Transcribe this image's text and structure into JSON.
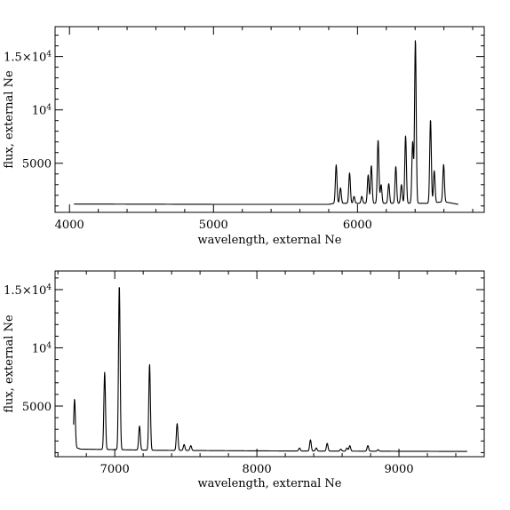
{
  "chart_data": [
    {
      "type": "line",
      "xlabel": "wavelength, external Ne",
      "ylabel": "flux, external Ne",
      "xlim": [
        3900,
        6880
      ],
      "ylim": [
        400,
        17800
      ],
      "x_ticks": [
        4000,
        5000,
        6000
      ],
      "x_tick_labels": [
        "4000",
        "5000",
        "6000"
      ],
      "y_ticks": [
        5000,
        10000,
        15000
      ],
      "y_tick_labels": [
        "5000",
        "10^4",
        "1.5×10^4"
      ],
      "grid": false,
      "series": [
        {
          "baseline": [
            [
              4030,
              1180
            ],
            [
              5000,
              1150
            ],
            [
              5800,
              1150
            ],
            [
              5840,
              1250
            ],
            [
              6500,
              1250
            ],
            [
              6600,
              1400
            ],
            [
              6640,
              1300
            ],
            [
              6700,
              1150
            ]
          ],
          "peaks": [
            {
              "x": 5852,
              "y": 4850
            },
            {
              "x": 5882,
              "y": 2700
            },
            {
              "x": 5945,
              "y": 4100
            },
            {
              "x": 5976,
              "y": 1900
            },
            {
              "x": 6030,
              "y": 1900
            },
            {
              "x": 6074,
              "y": 3900
            },
            {
              "x": 6096,
              "y": 4800
            },
            {
              "x": 6143,
              "y": 7200
            },
            {
              "x": 6164,
              "y": 3000
            },
            {
              "x": 6217,
              "y": 3100
            },
            {
              "x": 6266,
              "y": 4700
            },
            {
              "x": 6305,
              "y": 3000
            },
            {
              "x": 6334,
              "y": 7600
            },
            {
              "x": 6383,
              "y": 7000
            },
            {
              "x": 6402,
              "y": 16600
            },
            {
              "x": 6507,
              "y": 9100
            },
            {
              "x": 6533,
              "y": 4300
            },
            {
              "x": 6598,
              "y": 4900
            }
          ]
        }
      ]
    },
    {
      "type": "line",
      "xlabel": "wavelength, external Ne",
      "ylabel": "flux, external Ne",
      "xlim": [
        6580,
        9600
      ],
      "ylim": [
        650,
        16600
      ],
      "x_ticks": [
        7000,
        8000,
        9000
      ],
      "x_tick_labels": [
        "7000",
        "8000",
        "9000"
      ],
      "y_ticks": [
        5000,
        10000,
        15000
      ],
      "y_tick_labels": [
        "5000",
        "10^4",
        "1.5×10^4"
      ],
      "grid": false,
      "series": [
        {
          "baseline": [
            [
              6710,
              1500
            ],
            [
              6760,
              1300
            ],
            [
              7300,
              1200
            ],
            [
              8000,
              1150
            ],
            [
              9480,
              1100
            ]
          ],
          "peaks": [
            {
              "x": 6717,
              "y": 5600
            },
            {
              "x": 6929,
              "y": 7900
            },
            {
              "x": 7032,
              "y": 15400
            },
            {
              "x": 7174,
              "y": 3300
            },
            {
              "x": 7245,
              "y": 8600
            },
            {
              "x": 7439,
              "y": 3500
            },
            {
              "x": 7488,
              "y": 1700
            },
            {
              "x": 7535,
              "y": 1600
            },
            {
              "x": 8300,
              "y": 1400
            },
            {
              "x": 8377,
              "y": 2100
            },
            {
              "x": 8418,
              "y": 1400
            },
            {
              "x": 8495,
              "y": 1800
            },
            {
              "x": 8591,
              "y": 1300
            },
            {
              "x": 8634,
              "y": 1400
            },
            {
              "x": 8654,
              "y": 1600
            },
            {
              "x": 8781,
              "y": 1600
            },
            {
              "x": 8853,
              "y": 1250
            }
          ]
        }
      ]
    }
  ]
}
